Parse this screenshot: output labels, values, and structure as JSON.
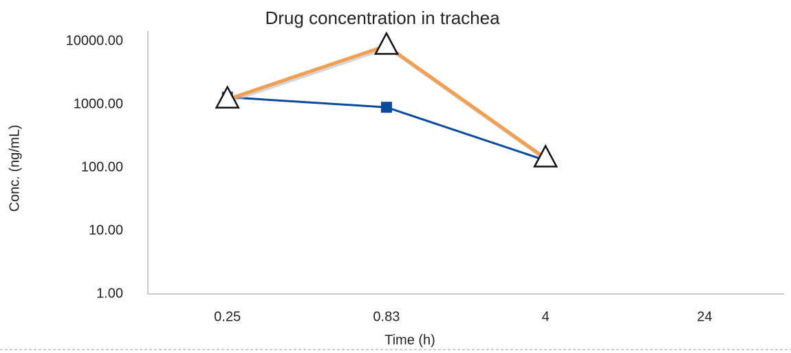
{
  "chart_data": {
    "type": "line",
    "title": "Drug concentration in trachea",
    "x_label": "Time (h)",
    "y_label": "Conc. (ng/mL)",
    "categories": [
      "0.25",
      "0.83",
      "4",
      "24"
    ],
    "series": [
      {
        "color": "#0a4a9c",
        "marker": "square",
        "values": [
          1300,
          900,
          130,
          null
        ]
      },
      {
        "color": "#f0a050",
        "marker": "triangle",
        "values": [
          1200,
          8500,
          140,
          null
        ]
      }
    ],
    "log_y": true,
    "ylim": [
      1,
      10000
    ],
    "yticks": [
      {
        "value": 1,
        "label": "1.00"
      },
      {
        "value": 10,
        "label": "10.00"
      },
      {
        "value": 100,
        "label": "100.00"
      },
      {
        "value": 1000,
        "label": "1000.00"
      },
      {
        "value": 10000,
        "label": "10000.00"
      }
    ]
  }
}
